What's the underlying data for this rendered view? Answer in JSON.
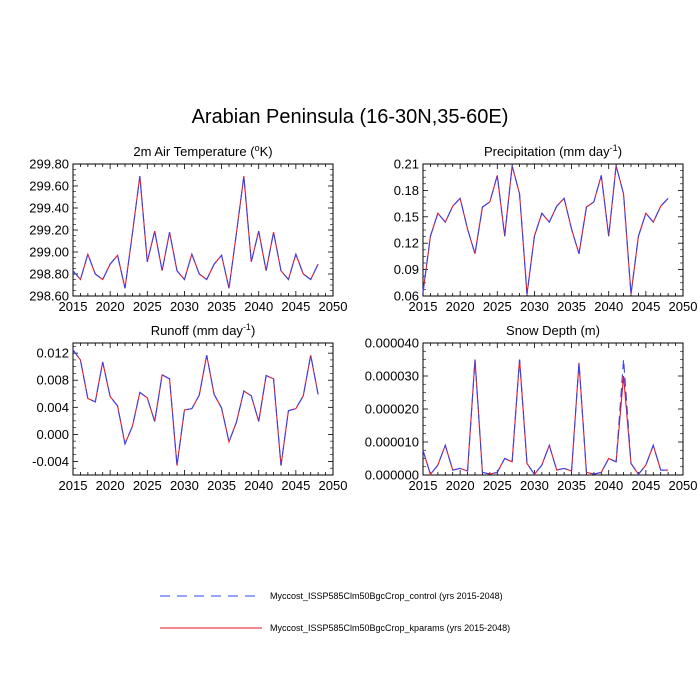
{
  "title": "Arabian Peninsula (16-30N,35-60E)",
  "colors": {
    "control": "#3344ee",
    "kparams": "#ee1122"
  },
  "legend": [
    {
      "label": "Myccost_ISSP585Clm50BgcCrop_control (yrs 2015-2048)",
      "style": "dashed",
      "color": "#3344ee"
    },
    {
      "label": "Myccost_ISSP585Clm50BgcCrop_kparams (yrs 2015-2048)",
      "style": "solid",
      "color": "#ee1122"
    }
  ],
  "chart_data": [
    {
      "type": "line",
      "title": "2m Air Temperature (°K)",
      "title_main": "2m Air Temperature (",
      "title_sup": "o",
      "title_tail": "K)",
      "xlim": [
        2015,
        2050
      ],
      "ylim": [
        298.6,
        299.8
      ],
      "x_ticks": [
        2015,
        2020,
        2025,
        2030,
        2035,
        2040,
        2045,
        2050
      ],
      "y_ticks": [
        298.6,
        298.8,
        299.0,
        299.2,
        299.4,
        299.6,
        299.8
      ],
      "y_tick_labels": [
        "298.60",
        "298.80",
        "299.00",
        "299.20",
        "299.40",
        "299.60",
        "299.80"
      ],
      "x": [
        2015,
        2016,
        2017,
        2018,
        2019,
        2020,
        2021,
        2022,
        2023,
        2024,
        2025,
        2026,
        2027,
        2028,
        2029,
        2030,
        2031,
        2032,
        2033,
        2034,
        2035,
        2036,
        2037,
        2038,
        2039,
        2040,
        2041,
        2042,
        2043,
        2044,
        2045,
        2046,
        2047,
        2048
      ],
      "series": [
        {
          "values": [
            298.83,
            298.75,
            298.98,
            298.8,
            298.75,
            298.89,
            298.97,
            298.67,
            299.17,
            299.69,
            298.91,
            299.19,
            298.83,
            299.18,
            298.83,
            298.75,
            298.98,
            298.8,
            298.75,
            298.89,
            298.97,
            298.67,
            299.17,
            299.69,
            298.91,
            299.19,
            298.83,
            299.18,
            298.83,
            298.75,
            298.98,
            298.8,
            298.75,
            298.89
          ]
        },
        {
          "values": [
            298.83,
            298.75,
            298.98,
            298.8,
            298.75,
            298.89,
            298.97,
            298.67,
            299.17,
            299.69,
            298.91,
            299.19,
            298.83,
            299.18,
            298.83,
            298.75,
            298.98,
            298.8,
            298.75,
            298.89,
            298.97,
            298.67,
            299.17,
            299.69,
            298.91,
            299.19,
            298.83,
            299.18,
            298.83,
            298.75,
            298.98,
            298.8,
            298.75,
            298.89
          ]
        }
      ]
    },
    {
      "type": "line",
      "title": "Precipitation (mm day-1)",
      "title_main": "Precipitation (mm day",
      "title_sup": "-1",
      "title_tail": ")",
      "xlim": [
        2015,
        2050
      ],
      "ylim": [
        0.06,
        0.21
      ],
      "x_ticks": [
        2015,
        2020,
        2025,
        2030,
        2035,
        2040,
        2045,
        2050
      ],
      "y_ticks": [
        0.06,
        0.09,
        0.12,
        0.15,
        0.18,
        0.21
      ],
      "y_tick_labels": [
        "0.06",
        "0.09",
        "0.12",
        "0.15",
        "0.18",
        "0.21"
      ],
      "x": [
        2015,
        2016,
        2017,
        2018,
        2019,
        2020,
        2021,
        2022,
        2023,
        2024,
        2025,
        2026,
        2027,
        2028,
        2029,
        2030,
        2031,
        2032,
        2033,
        2034,
        2035,
        2036,
        2037,
        2038,
        2039,
        2040,
        2041,
        2042,
        2043,
        2044,
        2045,
        2046,
        2047,
        2048
      ],
      "series": [
        {
          "values": [
            0.064,
            0.128,
            0.154,
            0.144,
            0.162,
            0.171,
            0.136,
            0.108,
            0.161,
            0.167,
            0.197,
            0.128,
            0.208,
            0.176,
            0.062,
            0.128,
            0.154,
            0.144,
            0.162,
            0.171,
            0.136,
            0.108,
            0.161,
            0.167,
            0.197,
            0.128,
            0.208,
            0.176,
            0.062,
            0.128,
            0.154,
            0.144,
            0.162,
            0.171
          ]
        },
        {
          "values": [
            0.064,
            0.128,
            0.154,
            0.144,
            0.162,
            0.171,
            0.136,
            0.108,
            0.161,
            0.167,
            0.197,
            0.128,
            0.208,
            0.176,
            0.062,
            0.128,
            0.154,
            0.144,
            0.162,
            0.171,
            0.136,
            0.108,
            0.161,
            0.167,
            0.197,
            0.128,
            0.208,
            0.176,
            0.062,
            0.128,
            0.154,
            0.144,
            0.162,
            0.171
          ]
        }
      ]
    },
    {
      "type": "line",
      "title": "Runoff (mm day-1)",
      "title_main": "Runoff (mm day",
      "title_sup": "-1",
      "title_tail": ")",
      "xlim": [
        2015,
        2050
      ],
      "ylim": [
        -0.006,
        0.0135
      ],
      "x_ticks": [
        2015,
        2020,
        2025,
        2030,
        2035,
        2040,
        2045,
        2050
      ],
      "y_ticks": [
        -0.004,
        0.0,
        0.004,
        0.008,
        0.012
      ],
      "y_tick_labels": [
        "-0.004",
        "0.000",
        "0.004",
        "0.008",
        "0.012"
      ],
      "x": [
        2015,
        2016,
        2017,
        2018,
        2019,
        2020,
        2021,
        2022,
        2023,
        2024,
        2025,
        2026,
        2027,
        2028,
        2029,
        2030,
        2031,
        2032,
        2033,
        2034,
        2035,
        2036,
        2037,
        2038,
        2039,
        2040,
        2041,
        2042,
        2043,
        2044,
        2045,
        2046,
        2047,
        2048
      ],
      "series": [
        {
          "values": [
            0.0125,
            0.011,
            0.0053,
            0.0048,
            0.0107,
            0.0056,
            0.0042,
            -0.0014,
            0.0012,
            0.0062,
            0.0054,
            0.0019,
            0.0088,
            0.0082,
            -0.0046,
            0.0036,
            0.0038,
            0.0058,
            0.0117,
            0.0059,
            0.0039,
            -0.0011,
            0.0018,
            0.0064,
            0.0057,
            0.0019,
            0.0087,
            0.0082,
            -0.0046,
            0.0035,
            0.0038,
            0.0057,
            0.0117,
            0.0059
          ]
        },
        {
          "values": [
            0.0125,
            0.011,
            0.0053,
            0.0048,
            0.0107,
            0.0056,
            0.0042,
            -0.0014,
            0.0012,
            0.0062,
            0.0054,
            0.0019,
            0.0088,
            0.0082,
            -0.0046,
            0.0036,
            0.0038,
            0.0058,
            0.0117,
            0.0059,
            0.0039,
            -0.0011,
            0.0018,
            0.0064,
            0.0057,
            0.0019,
            0.0087,
            0.0082,
            -0.0046,
            0.0035,
            0.0038,
            0.0057,
            0.0117,
            0.0059
          ]
        }
      ]
    },
    {
      "type": "line",
      "title": "Snow Depth (m)",
      "title_main": "Snow Depth (m)",
      "title_sup": "",
      "title_tail": "",
      "xlim": [
        2015,
        2050
      ],
      "ylim": [
        0.0,
        4e-05
      ],
      "x_ticks": [
        2015,
        2020,
        2025,
        2030,
        2035,
        2040,
        2045,
        2050
      ],
      "y_ticks": [
        0.0,
        1e-05,
        2e-05,
        3e-05,
        4e-05
      ],
      "y_tick_labels": [
        "0.000000",
        "0.000010",
        "0.000020",
        "0.000030",
        "0.000040"
      ],
      "x": [
        2015,
        2016,
        2017,
        2018,
        2019,
        2020,
        2021,
        2022,
        2023,
        2024,
        2025,
        2026,
        2027,
        2028,
        2029,
        2030,
        2031,
        2032,
        2033,
        2034,
        2035,
        2036,
        2037,
        2038,
        2039,
        2040,
        2041,
        2042,
        2043,
        2044,
        2045,
        2046,
        2047,
        2048
      ],
      "series": [
        {
          "values": [
            7.5e-06,
            2e-07,
            3e-06,
            9e-06,
            1.5e-06,
            2e-06,
            1.2e-06,
            3.5e-05,
            8e-07,
            3e-07,
            8e-07,
            5e-06,
            4e-06,
            3.5e-05,
            3.5e-06,
            2e-07,
            3e-06,
            9e-06,
            1.5e-06,
            2e-06,
            1.2e-06,
            3.4e-05,
            8e-07,
            3e-07,
            8e-07,
            5e-06,
            4e-06,
            3.5e-05,
            3.5e-06,
            2e-07,
            3e-06,
            9e-06,
            1.5e-06,
            1.5e-06
          ]
        },
        {
          "values": [
            7.5e-06,
            2e-07,
            3e-06,
            9e-06,
            1.5e-06,
            2e-06,
            1.2e-06,
            3.5e-05,
            8e-07,
            3e-07,
            8e-07,
            5e-06,
            4e-06,
            3.5e-05,
            3.5e-06,
            2e-07,
            3e-06,
            9e-06,
            1.5e-06,
            2e-06,
            1.2e-06,
            3.4e-05,
            8e-07,
            3e-07,
            8e-07,
            5e-06,
            4e-06,
            3e-05,
            3.5e-06,
            2e-07,
            3e-06,
            9e-06,
            1.5e-06,
            1.5e-06
          ]
        }
      ]
    }
  ]
}
